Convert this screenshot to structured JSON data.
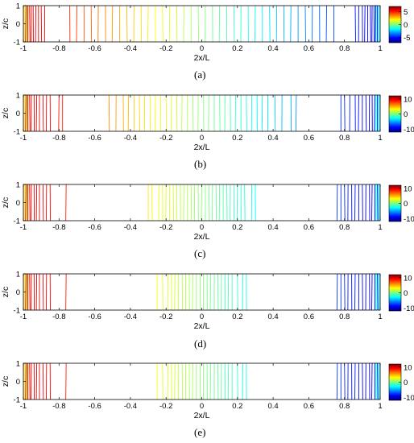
{
  "figure": {
    "panel_labels": [
      "(a)",
      "(b)",
      "(c)",
      "(d)",
      "(e)"
    ]
  },
  "chart_data": [
    {
      "type": "contour",
      "panel": "(a)",
      "xlabel": "2x/L",
      "ylabel": "z/c",
      "xlim": [
        -1,
        1
      ],
      "ylim": [
        -1,
        1
      ],
      "xticks": [
        -1,
        -0.8,
        -0.6,
        -0.4,
        -0.2,
        0,
        0.2,
        0.4,
        0.6,
        0.8,
        1
      ],
      "yticks": [
        -1,
        0,
        1
      ],
      "colorbar": {
        "ticks": [
          5,
          0,
          -5
        ],
        "range": [
          -7,
          7
        ]
      },
      "contour_x": [
        -0.985,
        -0.975,
        -0.965,
        -0.955,
        -0.945,
        -0.93,
        -0.915,
        -0.9,
        -0.88,
        -0.74,
        -0.7,
        -0.66,
        -0.62,
        -0.58,
        -0.54,
        -0.5,
        -0.46,
        -0.42,
        -0.38,
        -0.34,
        -0.3,
        -0.26,
        -0.22,
        -0.18,
        -0.14,
        -0.1,
        -0.06,
        -0.02,
        0.02,
        0.06,
        0.1,
        0.14,
        0.18,
        0.22,
        0.26,
        0.3,
        0.34,
        0.38,
        0.42,
        0.46,
        0.5,
        0.54,
        0.58,
        0.62,
        0.66,
        0.7,
        0.74,
        0.86,
        0.88,
        0.9,
        0.915,
        0.93,
        0.945,
        0.955,
        0.965,
        0.975,
        0.985
      ],
      "edge_fill": true
    },
    {
      "type": "contour",
      "panel": "(b)",
      "xlabel": "2x/L",
      "ylabel": "z/c",
      "xlim": [
        -1,
        1
      ],
      "ylim": [
        -1,
        1
      ],
      "xticks": [
        -1,
        -0.8,
        -0.6,
        -0.4,
        -0.2,
        0,
        0.2,
        0.4,
        0.6,
        0.8,
        1
      ],
      "yticks": [
        -1,
        0,
        1
      ],
      "colorbar": {
        "ticks": [
          10,
          0,
          -10
        ],
        "range": [
          -12,
          12
        ]
      },
      "contour_x": [
        -0.985,
        -0.975,
        -0.965,
        -0.955,
        -0.94,
        -0.925,
        -0.91,
        -0.89,
        -0.87,
        -0.85,
        -0.8,
        -0.78,
        -0.52,
        -0.48,
        -0.44,
        -0.41,
        -0.38,
        -0.35,
        -0.32,
        -0.29,
        -0.26,
        -0.23,
        -0.2,
        -0.17,
        -0.14,
        -0.11,
        -0.08,
        -0.05,
        -0.02,
        0.01,
        0.04,
        0.07,
        0.1,
        0.13,
        0.16,
        0.19,
        0.22,
        0.25,
        0.28,
        0.31,
        0.34,
        0.37,
        0.41,
        0.45,
        0.5,
        0.53,
        0.78,
        0.8,
        0.83,
        0.86,
        0.88,
        0.9,
        0.92,
        0.94,
        0.955,
        0.97,
        0.985
      ],
      "edge_fill": true
    },
    {
      "type": "contour",
      "panel": "(c)",
      "xlabel": "2x/L",
      "ylabel": "z/c",
      "xlim": [
        -1,
        1
      ],
      "ylim": [
        -1,
        1
      ],
      "xticks": [
        -1,
        -0.8,
        -0.6,
        -0.4,
        -0.2,
        0,
        0.2,
        0.4,
        0.6,
        0.8,
        1
      ],
      "yticks": [
        -1,
        0,
        1
      ],
      "colorbar": {
        "ticks": [
          10,
          0,
          -10
        ],
        "range": [
          -12,
          12
        ]
      },
      "contour_x": [
        -0.985,
        -0.975,
        -0.965,
        -0.955,
        -0.94,
        -0.925,
        -0.91,
        -0.89,
        -0.87,
        -0.85,
        -0.76,
        -0.3,
        -0.28,
        -0.24,
        -0.22,
        -0.2,
        -0.18,
        -0.16,
        -0.14,
        -0.12,
        -0.1,
        -0.08,
        -0.06,
        -0.04,
        -0.02,
        0,
        0.02,
        0.04,
        0.06,
        0.08,
        0.1,
        0.12,
        0.14,
        0.16,
        0.18,
        0.2,
        0.22,
        0.24,
        0.28,
        0.3,
        0.76,
        0.78,
        0.8,
        0.82,
        0.84,
        0.86,
        0.88,
        0.9,
        0.92,
        0.94,
        0.955,
        0.97,
        0.985
      ],
      "edge_fill": true
    },
    {
      "type": "contour",
      "panel": "(d)",
      "xlabel": "2x/L",
      "ylabel": "z/c",
      "xlim": [
        -1,
        1
      ],
      "ylim": [
        -1,
        1
      ],
      "xticks": [
        -1,
        -0.8,
        -0.6,
        -0.4,
        -0.2,
        0,
        0.2,
        0.4,
        0.6,
        0.8,
        1
      ],
      "yticks": [
        -1,
        0,
        1
      ],
      "colorbar": {
        "ticks": [
          10,
          0,
          -10
        ],
        "range": [
          -12,
          12
        ]
      },
      "contour_x": [
        -0.985,
        -0.975,
        -0.965,
        -0.955,
        -0.94,
        -0.925,
        -0.91,
        -0.89,
        -0.87,
        -0.85,
        -0.76,
        -0.25,
        -0.22,
        -0.19,
        -0.17,
        -0.15,
        -0.13,
        -0.11,
        -0.09,
        -0.07,
        -0.05,
        -0.03,
        -0.01,
        0.01,
        0.03,
        0.05,
        0.07,
        0.09,
        0.11,
        0.13,
        0.15,
        0.17,
        0.2,
        0.23,
        0.25,
        0.76,
        0.78,
        0.8,
        0.82,
        0.84,
        0.86,
        0.88,
        0.9,
        0.92,
        0.94,
        0.955,
        0.97,
        0.985
      ],
      "edge_fill": true
    },
    {
      "type": "contour",
      "panel": "(e)",
      "xlabel": "2x/L",
      "ylabel": "z/c",
      "xlim": [
        -1,
        1
      ],
      "ylim": [
        -1,
        1
      ],
      "xticks": [
        -1,
        -0.8,
        -0.6,
        -0.4,
        -0.2,
        0,
        0.2,
        0.4,
        0.6,
        0.8,
        1
      ],
      "yticks": [
        -1,
        0,
        1
      ],
      "colorbar": {
        "ticks": [
          10,
          0,
          -10
        ],
        "range": [
          -12,
          12
        ]
      },
      "contour_x": [
        -0.985,
        -0.975,
        -0.965,
        -0.955,
        -0.94,
        -0.925,
        -0.91,
        -0.89,
        -0.87,
        -0.85,
        -0.76,
        -0.25,
        -0.22,
        -0.19,
        -0.17,
        -0.15,
        -0.13,
        -0.11,
        -0.09,
        -0.07,
        -0.05,
        -0.03,
        -0.01,
        0.01,
        0.03,
        0.05,
        0.07,
        0.09,
        0.11,
        0.13,
        0.15,
        0.17,
        0.2,
        0.23,
        0.25,
        0.76,
        0.78,
        0.8,
        0.82,
        0.84,
        0.86,
        0.88,
        0.9,
        0.92,
        0.94,
        0.955,
        0.97,
        0.985
      ],
      "edge_fill": true
    }
  ]
}
